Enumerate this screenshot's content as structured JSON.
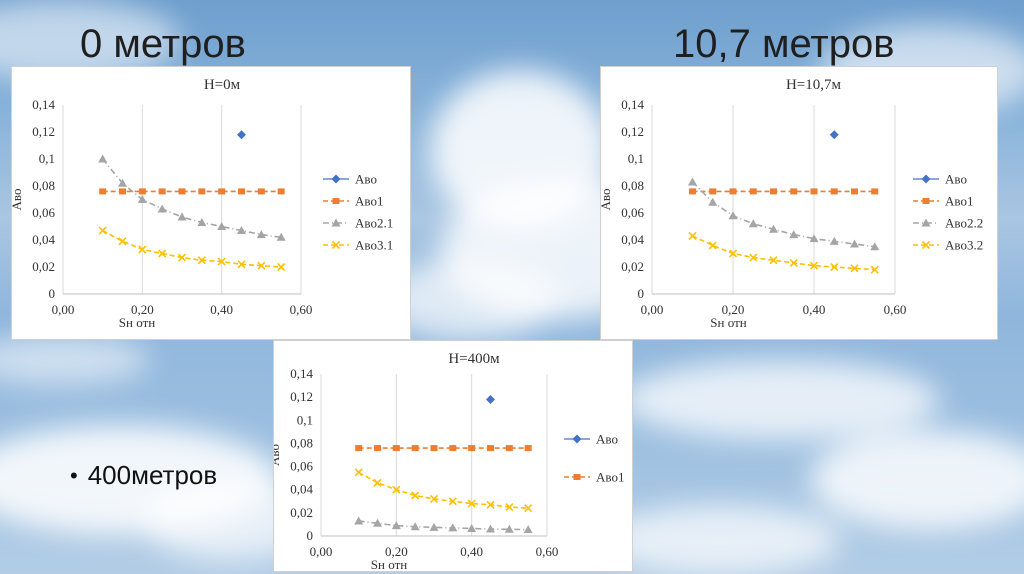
{
  "slide": {
    "heading_left": "0 метров",
    "heading_right": "10,7 метров",
    "bullet": "400метров"
  },
  "colors": {
    "Аво": "#4472c4",
    "Аво1": "#ed7d31",
    "Аво2": "#a5a5a5",
    "Аво3": "#ffc000"
  },
  "chart_data": [
    {
      "type": "scatter",
      "title": "H=0м",
      "xlabel": "Sн отн",
      "ylabel": "Аво",
      "xlim": [
        0,
        0.6
      ],
      "ylim": [
        0,
        0.14
      ],
      "xticks": [
        "0,00",
        "0,20",
        "0,40",
        "0,60"
      ],
      "yticks": [
        "0",
        "0,02",
        "0,04",
        "0,06",
        "0,08",
        "0,1",
        "0,12",
        "0,14"
      ],
      "grid": "vertical",
      "legend": "right",
      "series": [
        {
          "name": "Аво",
          "marker": "diamond",
          "line": "none",
          "x": [
            0.45
          ],
          "y": [
            0.118
          ]
        },
        {
          "name": "Аво1",
          "marker": "square",
          "line": "dashed",
          "x": [
            0.1,
            0.15,
            0.2,
            0.25,
            0.3,
            0.35,
            0.4,
            0.45,
            0.5,
            0.55
          ],
          "y": [
            0.076,
            0.076,
            0.076,
            0.076,
            0.076,
            0.076,
            0.076,
            0.076,
            0.076,
            0.076
          ]
        },
        {
          "name": "Аво2.1",
          "marker": "triangle",
          "line": "dashdot",
          "x": [
            0.1,
            0.15,
            0.2,
            0.25,
            0.3,
            0.35,
            0.4,
            0.45,
            0.5,
            0.55
          ],
          "y": [
            0.1,
            0.082,
            0.07,
            0.063,
            0.057,
            0.053,
            0.05,
            0.047,
            0.044,
            0.042
          ]
        },
        {
          "name": "Аво3.1",
          "marker": "x",
          "line": "dashed",
          "x": [
            0.1,
            0.15,
            0.2,
            0.25,
            0.3,
            0.35,
            0.4,
            0.45,
            0.5,
            0.55
          ],
          "y": [
            0.047,
            0.039,
            0.033,
            0.03,
            0.027,
            0.025,
            0.024,
            0.022,
            0.021,
            0.02
          ]
        }
      ]
    },
    {
      "type": "scatter",
      "title": "H=10,7м",
      "xlabel": "Sн отн",
      "ylabel": "Аво",
      "xlim": [
        0,
        0.6
      ],
      "ylim": [
        0,
        0.14
      ],
      "xticks": [
        "0,00",
        "0,20",
        "0,40",
        "0,60"
      ],
      "yticks": [
        "0",
        "0,02",
        "0,04",
        "0,06",
        "0,08",
        "0,1",
        "0,12",
        "0,14"
      ],
      "grid": "vertical",
      "legend": "right",
      "series": [
        {
          "name": "Аво",
          "marker": "diamond",
          "line": "none",
          "x": [
            0.45
          ],
          "y": [
            0.118
          ]
        },
        {
          "name": "Аво1",
          "marker": "square",
          "line": "dashed",
          "x": [
            0.1,
            0.15,
            0.2,
            0.25,
            0.3,
            0.35,
            0.4,
            0.45,
            0.5,
            0.55
          ],
          "y": [
            0.076,
            0.076,
            0.076,
            0.076,
            0.076,
            0.076,
            0.076,
            0.076,
            0.076,
            0.076
          ]
        },
        {
          "name": "Аво2.2",
          "marker": "triangle",
          "line": "dashdot",
          "x": [
            0.1,
            0.15,
            0.2,
            0.25,
            0.3,
            0.35,
            0.4,
            0.45,
            0.5,
            0.55
          ],
          "y": [
            0.083,
            0.068,
            0.058,
            0.052,
            0.048,
            0.044,
            0.041,
            0.039,
            0.037,
            0.035
          ]
        },
        {
          "name": "Аво3.2",
          "marker": "x",
          "line": "dashed",
          "x": [
            0.1,
            0.15,
            0.2,
            0.25,
            0.3,
            0.35,
            0.4,
            0.45,
            0.5,
            0.55
          ],
          "y": [
            0.043,
            0.036,
            0.03,
            0.027,
            0.025,
            0.023,
            0.021,
            0.02,
            0.019,
            0.018
          ]
        }
      ]
    },
    {
      "type": "scatter",
      "title": "H=400м",
      "xlabel": "Sн отн",
      "ylabel": "Аво",
      "xlim": [
        0,
        0.6
      ],
      "ylim": [
        0,
        0.14
      ],
      "xticks": [
        "0,00",
        "0,20",
        "0,40",
        "0,60"
      ],
      "yticks": [
        "0",
        "0,02",
        "0,04",
        "0,06",
        "0,08",
        "0,1",
        "0,12",
        "0,14"
      ],
      "grid": "vertical",
      "legend": "right",
      "series": [
        {
          "name": "Аво",
          "marker": "diamond",
          "line": "none",
          "x": [
            0.45
          ],
          "y": [
            0.118
          ]
        },
        {
          "name": "Аво1",
          "marker": "square",
          "line": "dashed",
          "x": [
            0.1,
            0.15,
            0.2,
            0.25,
            0.3,
            0.35,
            0.4,
            0.45,
            0.5,
            0.55
          ],
          "y": [
            0.076,
            0.076,
            0.076,
            0.076,
            0.076,
            0.076,
            0.076,
            0.076,
            0.076,
            0.076
          ]
        },
        {
          "marker": "triangle",
          "line": "dashdot",
          "x": [
            0.1,
            0.15,
            0.2,
            0.25,
            0.3,
            0.35,
            0.4,
            0.45,
            0.5,
            0.55
          ],
          "y": [
            0.013,
            0.011,
            0.009,
            0.008,
            0.0075,
            0.007,
            0.0065,
            0.006,
            0.0058,
            0.0055
          ]
        },
        {
          "marker": "x",
          "line": "dashed",
          "x": [
            0.1,
            0.15,
            0.2,
            0.25,
            0.3,
            0.35,
            0.4,
            0.45,
            0.5,
            0.55
          ],
          "y": [
            0.055,
            0.046,
            0.04,
            0.035,
            0.032,
            0.03,
            0.028,
            0.027,
            0.025,
            0.024
          ]
        }
      ]
    }
  ]
}
